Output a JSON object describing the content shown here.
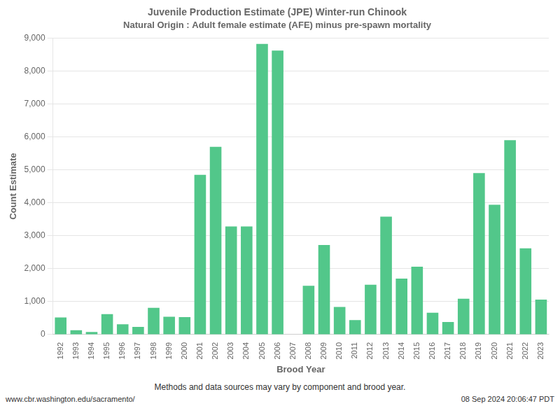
{
  "chart_data": {
    "type": "bar",
    "title": "Juvenile Production Estimate (JPE) Winter-run Chinook",
    "subtitle": "Natural Origin : Adult female estimate (AFE) minus pre-spawn mortality",
    "xlabel": "Brood Year",
    "ylabel": "Count Estimate",
    "annotations": [
      "Methods and data sources may vary by component and brood year.",
      "www.cbr.washington.edu/sacramento/",
      "08 Sep 2024 20:06:47 PDT"
    ],
    "categories": [
      "1992",
      "1993",
      "1994",
      "1995",
      "1996",
      "1997",
      "1998",
      "1999",
      "2000",
      "2001",
      "2002",
      "2003",
      "2004",
      "2005",
      "2006",
      "2007",
      "2008",
      "2009",
      "2010",
      "2011",
      "2012",
      "2013",
      "2014",
      "2015",
      "2016",
      "2017",
      "2018",
      "2019",
      "2020",
      "2021",
      "2022",
      "2023"
    ],
    "values": [
      520,
      130,
      80,
      620,
      310,
      230,
      810,
      540,
      530,
      4850,
      5700,
      3280,
      3280,
      8820,
      8620,
      0,
      1480,
      2720,
      840,
      440,
      1510,
      3580,
      1700,
      2060,
      660,
      380,
      1090,
      4900,
      3940,
      5900,
      2620,
      1060
    ],
    "color": "#52c78a",
    "ylim": [
      0,
      9000
    ],
    "yticks": [
      0,
      {
        "value": 1000,
        "label": "1,000"
      },
      {
        "value": 2000,
        "label": "2,000"
      },
      {
        "value": 3000,
        "label": "3,000"
      },
      {
        "value": 4000,
        "label": "4,000"
      },
      {
        "value": 5000,
        "label": "5,000"
      },
      {
        "value": 6000,
        "label": "6,000"
      },
      {
        "value": 7000,
        "label": "7,000"
      },
      {
        "value": 8000,
        "label": "8,000"
      },
      {
        "value": 9000,
        "label": "9,000"
      }
    ],
    "grid": true
  }
}
